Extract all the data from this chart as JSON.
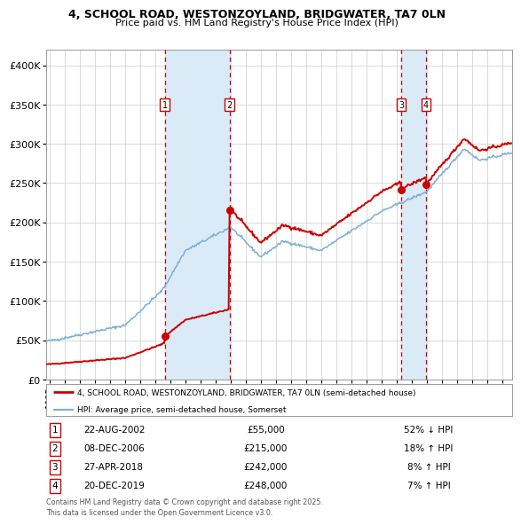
{
  "title_line1": "4, SCHOOL ROAD, WESTONZOYLAND, BRIDGWATER, TA7 0LN",
  "title_line2": "Price paid vs. HM Land Registry's House Price Index (HPI)",
  "background_color": "#ffffff",
  "plot_bg_color": "#ffffff",
  "grid_color": "#cccccc",
  "red_line_color": "#cc0000",
  "blue_line_color": "#7ab0d4",
  "shade_color": "#daeaf7",
  "dashed_line_color": "#cc0000",
  "t_years": [
    2002.64,
    2006.93,
    2018.32,
    2019.97
  ],
  "t_prices": [
    55000,
    215000,
    242000,
    248000
  ],
  "table_rows": [
    [
      "1",
      "22-AUG-2002",
      "£55,000",
      "52% ↓ HPI"
    ],
    [
      "2",
      "08-DEC-2006",
      "£215,000",
      "18% ↑ HPI"
    ],
    [
      "3",
      "27-APR-2018",
      "£242,000",
      "8% ↑ HPI"
    ],
    [
      "4",
      "20-DEC-2019",
      "£248,000",
      "7% ↑ HPI"
    ]
  ],
  "legend_property": "4, SCHOOL ROAD, WESTONZOYLAND, BRIDGWATER, TA7 0LN (semi-detached house)",
  "legend_hpi": "HPI: Average price, semi-detached house, Somerset",
  "footer": "Contains HM Land Registry data © Crown copyright and database right 2025.\nThis data is licensed under the Open Government Licence v3.0.",
  "ylim": [
    0,
    420000
  ],
  "xlim_start": 1994.8,
  "xlim_end": 2025.7,
  "yticks": [
    0,
    50000,
    100000,
    150000,
    200000,
    250000,
    300000,
    350000,
    400000
  ],
  "ytick_labels": [
    "£0",
    "£50K",
    "£100K",
    "£150K",
    "£200K",
    "£250K",
    "£300K",
    "£350K",
    "£400K"
  ],
  "year_ticks": [
    1995,
    1996,
    1997,
    1998,
    1999,
    2000,
    2001,
    2002,
    2003,
    2004,
    2005,
    2006,
    2007,
    2008,
    2009,
    2010,
    2011,
    2012,
    2013,
    2014,
    2015,
    2016,
    2017,
    2018,
    2019,
    2020,
    2021,
    2022,
    2023,
    2024,
    2025
  ]
}
